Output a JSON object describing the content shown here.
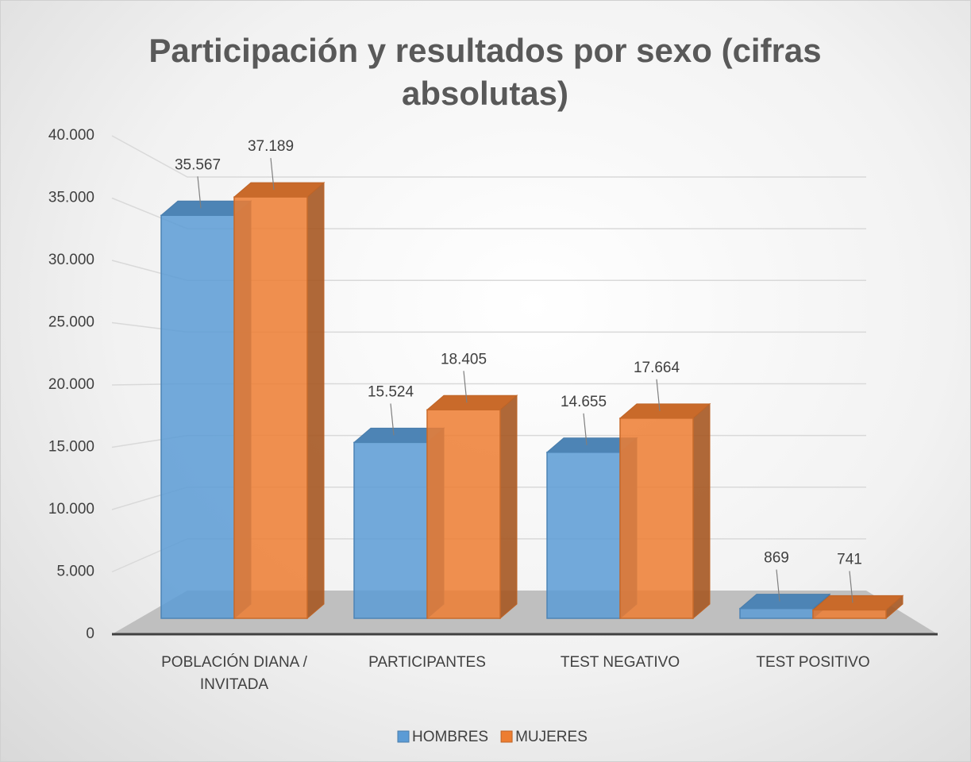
{
  "chart_data": {
    "type": "bar3d",
    "title": "Participación y resultados por sexo (cifras absolutas)",
    "categories": [
      "POBLACIÓN DIANA / INVITADA",
      "PARTICIPANTES",
      "TEST NEGATIVO",
      "TEST POSITIVO"
    ],
    "series": [
      {
        "name": "HOMBRES",
        "color": "#5b9bd5",
        "values": [
          35567,
          15524,
          14655,
          869
        ],
        "value_labels": [
          "35.567",
          "15.524",
          "14.655",
          "869"
        ]
      },
      {
        "name": "MUJERES",
        "color": "#ed7d31",
        "values": [
          37189,
          18405,
          17664,
          741
        ],
        "value_labels": [
          "37.189",
          "18.405",
          "17.664",
          "741"
        ]
      }
    ],
    "ylim": [
      0,
      40000
    ],
    "yticks": [
      0,
      {
        "value": 5000,
        "label": "5.000"
      },
      {
        "value": 10000,
        "label": "10.000"
      },
      {
        "value": 15000,
        "label": "15.000"
      },
      {
        "value": 20000,
        "label": "20.000"
      },
      {
        "value": 25000,
        "label": "25.000"
      },
      {
        "value": 30000,
        "label": "30.000"
      },
      {
        "value": 35000,
        "label": "35.000"
      },
      {
        "value": 40000,
        "label": "40.000"
      }
    ],
    "grid": true,
    "legend": "bottom"
  }
}
